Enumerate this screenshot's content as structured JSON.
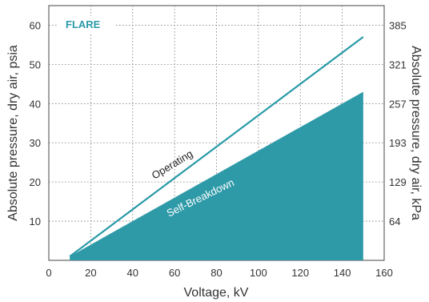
{
  "chart_data": {
    "type": "area",
    "x": [
      10,
      150
    ],
    "xlim": [
      0,
      160
    ],
    "ylim": [
      0,
      65
    ],
    "xlabel": "Voltage, kV",
    "ylabel": "Absolute pressure, dry air, psia",
    "ylabel_right": "Absolute pressure, dry air, kPa",
    "x_ticks": [
      "0",
      "20",
      "40",
      "60",
      "80",
      "100",
      "120",
      "140",
      "160"
    ],
    "y_ticks": [
      "10",
      "20",
      "30",
      "40",
      "50",
      "60"
    ],
    "y_ticks_right": [
      "64",
      "129",
      "193",
      "257",
      "321",
      "385"
    ],
    "legend_label": "FLARE",
    "grid": true,
    "series": [
      {
        "name": "Operating",
        "x": [
          10,
          150
        ],
        "values": [
          1,
          57
        ]
      },
      {
        "name": "Self-Breakdown",
        "x": [
          10,
          150
        ],
        "values": [
          1,
          43
        ]
      }
    ],
    "colors": {
      "accent": "#2a9aa8",
      "fill": "#2e9aa8",
      "line": "#2a9aa8"
    }
  }
}
